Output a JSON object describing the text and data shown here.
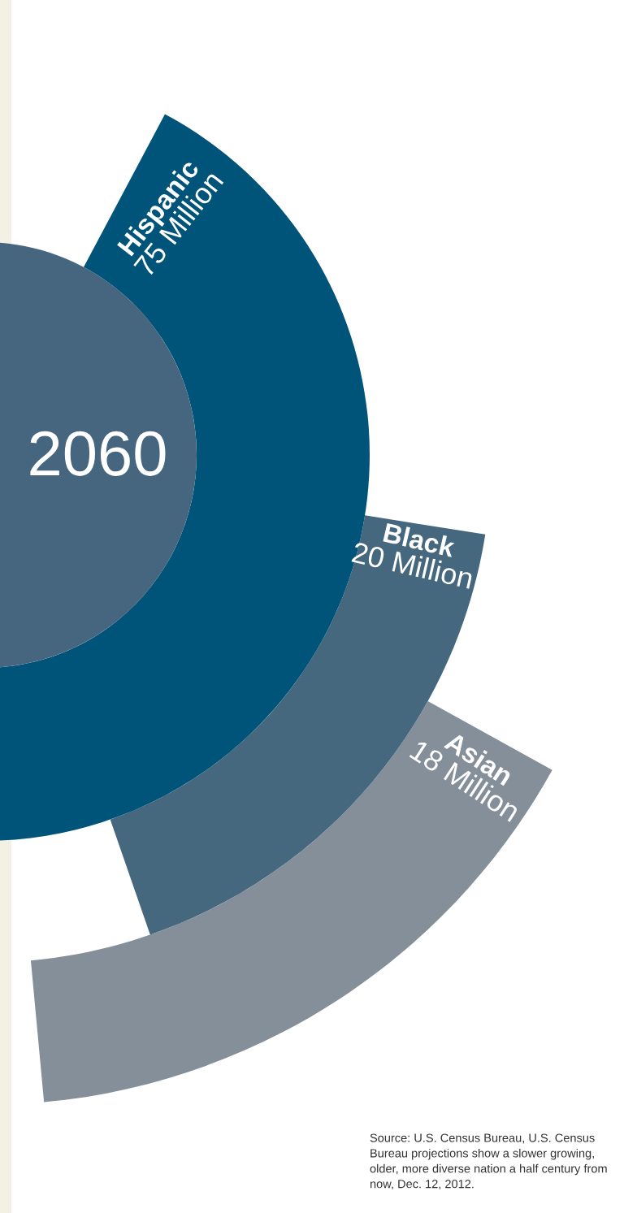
{
  "chart_data": {
    "type": "other",
    "title": "2060",
    "categories": [
      "Hispanic",
      "Black",
      "Asian"
    ],
    "values": [
      75,
      20,
      18
    ],
    "value_labels": [
      "75 Million",
      "20 Million",
      "18 Million"
    ],
    "colors": [
      "#005479",
      "#46687f",
      "#858f9a"
    ],
    "annotations": [
      "Source: U.S. Census Bureau, U.S. Census Bureau projections show a slower growing, older, more diverse nation a half century from now, Dec. 12, 2012."
    ]
  }
}
